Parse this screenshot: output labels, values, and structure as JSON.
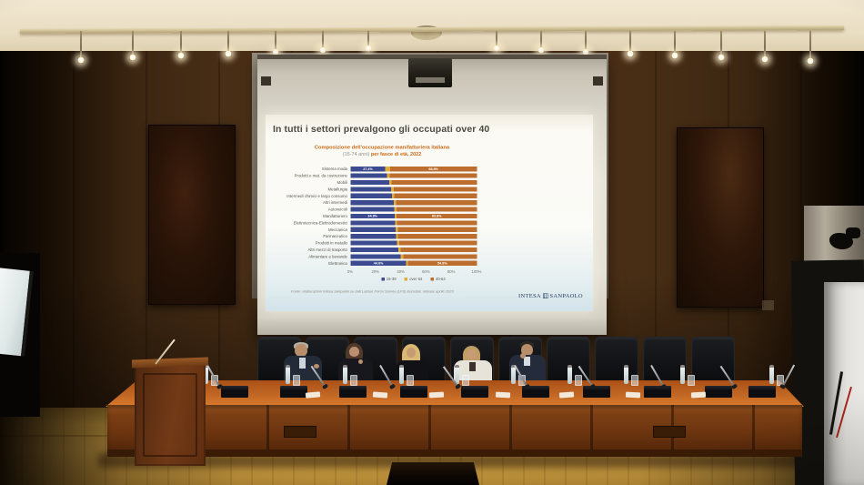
{
  "slide": {
    "title": "In tutti i settori prevalgono gli occupati over 40",
    "subtitle_line1": "Composizione dell'occupazione manifatturiera italiana",
    "subtitle_line2_prefix": "(15-74 anni) ",
    "subtitle_line2_bold": "per fasce di età, 2022",
    "source": "Fonte: elaborazioni Intesa Sanpaolo su dati Labour Force Survey (LFS) Eurostat, release aprile 2023",
    "logo_left": "INTESA",
    "logo_right": "SANPAOLO",
    "logo_color": "#23365e",
    "title_color": "#4c4b41",
    "accent_color": "#c76b16"
  },
  "chart_data": {
    "type": "bar",
    "orientation": "horizontal",
    "stacked": true,
    "title": "Composizione dell'occupazione manifatturiera italiana (15-74 anni) per fasce di età, 2022",
    "categories": [
      "Sistema moda",
      "Prodotti e mat. da costruzione",
      "Mobili",
      "Metallurgia",
      "Intermedi chimici e largo consumo",
      "Altri intermedi",
      "Autoveicoli",
      "Manifatturiero",
      "Elettrotecnica-Elettrodomestici",
      "Meccanica",
      "Farmaceutico",
      "Prodotti in metallo",
      "Altri mezzi di trasporto",
      "Alimentare e bevande",
      "Elettronico"
    ],
    "series": [
      {
        "name": "15-39",
        "color": "#3c4b90",
        "values": [
          27.4,
          28.9,
          30.4,
          32.0,
          32.8,
          34.0,
          34.6,
          34.8,
          35.2,
          35.6,
          35.9,
          36.6,
          37.6,
          39.5,
          44.0
        ]
      },
      {
        "name": "over 64",
        "color": "#e0ad3c",
        "values": [
          3.8,
          2.0,
          2.0,
          2.0,
          1.8,
          1.8,
          1.6,
          1.4,
          1.6,
          1.8,
          1.6,
          2.0,
          2.0,
          2.2,
          1.2
        ]
      },
      {
        "name": "40-64",
        "color": "#bc6e2e",
        "values": [
          68.8,
          69.1,
          67.6,
          66.0,
          65.4,
          64.2,
          63.8,
          63.8,
          63.2,
          62.6,
          62.5,
          61.4,
          60.4,
          58.3,
          54.8
        ]
      }
    ],
    "value_labels": {
      "0": [
        "27.4%",
        null,
        "68.8%"
      ],
      "7": [
        "34.8%",
        null,
        "63.8%"
      ],
      "14": [
        "44.0%",
        null,
        "54.8%"
      ]
    },
    "x_ticks": [
      "0%",
      "20%",
      "40%",
      "60%",
      "80%",
      "100%"
    ],
    "xlim": [
      0,
      100
    ],
    "grid": false,
    "legend_position": "bottom",
    "legend": [
      "15-39",
      "over 64",
      "40-64"
    ]
  }
}
